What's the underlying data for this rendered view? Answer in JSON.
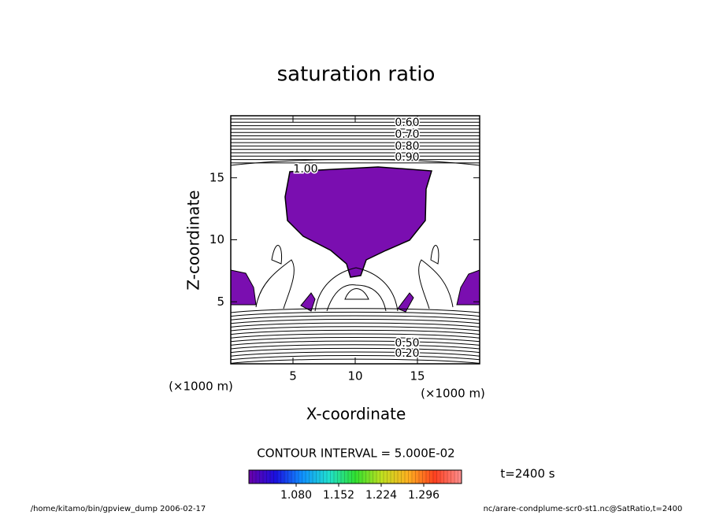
{
  "chart_data": {
    "type": "contour",
    "title": "saturation ratio",
    "x_label": "X-coordinate",
    "y_label": "Z-coordinate",
    "x_unit": "(×1000 m)",
    "y_unit": "(×1000 m)",
    "xlim": [
      0,
      20
    ],
    "ylim": [
      0,
      20
    ],
    "xticks": [
      5,
      10,
      15
    ],
    "yticks": [
      5,
      10,
      15
    ],
    "fill_color": "#7a0eb0",
    "contour_labels": [
      {
        "value": 0.6,
        "label": "0.60"
      },
      {
        "value": 0.7,
        "label": "0.70"
      },
      {
        "value": 0.8,
        "label": "0.80"
      },
      {
        "value": 0.9,
        "label": "0.90"
      },
      {
        "value": 1.0,
        "label": "1.00"
      },
      {
        "value": 0.5,
        "label": "0.50"
      },
      {
        "value": 0.2,
        "label": "0.20"
      }
    ],
    "contour_interval": "CONTOUR INTERVAL = 5.000E-02",
    "time_label": "t=2400 s",
    "colorbar": {
      "lim": [
        1.0,
        1.36
      ],
      "ticks": [
        {
          "value": 1.08,
          "label": "1.080"
        },
        {
          "value": 1.152,
          "label": "1.152"
        },
        {
          "value": 1.224,
          "label": "1.224"
        },
        {
          "value": 1.296,
          "label": "1.296"
        }
      ],
      "colors": [
        "#6a00a8",
        "#1a10e0",
        "#1090ff",
        "#20e0d0",
        "#30e030",
        "#c0e020",
        "#ffb020",
        "#ff4020",
        "#ff9090"
      ]
    },
    "footer_left": "/home/kitamo/bin/gpview_dump  2006-02-17",
    "footer_right": "nc/arare-condplume-scr0-st1.nc@SatRatio,t=2400"
  }
}
